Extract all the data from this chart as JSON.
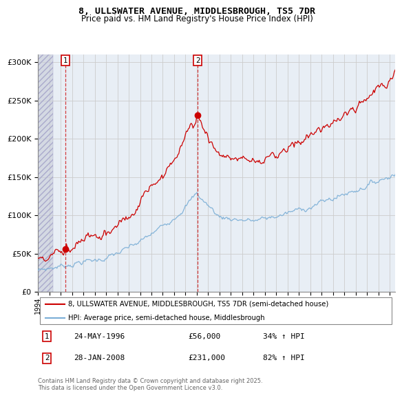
{
  "title1": "8, ULLSWATER AVENUE, MIDDLESBROUGH, TS5 7DR",
  "title2": "Price paid vs. HM Land Registry's House Price Index (HPI)",
  "ylabel_values": [
    "£0",
    "£50K",
    "£100K",
    "£150K",
    "£200K",
    "£250K",
    "£300K"
  ],
  "ylim": [
    0,
    310000
  ],
  "xlim_start": 1994.0,
  "xlim_end": 2025.5,
  "purchase1_year": 1996.39,
  "purchase1_price": 56000,
  "purchase2_year": 2008.08,
  "purchase2_price": 231000,
  "legend_line1": "8, ULLSWATER AVENUE, MIDDLESBROUGH, TS5 7DR (semi-detached house)",
  "legend_line2": "HPI: Average price, semi-detached house, Middlesbrough",
  "annot1_date": "24-MAY-1996",
  "annot1_price": "£56,000",
  "annot1_hpi": "34% ↑ HPI",
  "annot2_date": "28-JAN-2008",
  "annot2_price": "£231,000",
  "annot2_hpi": "82% ↑ HPI",
  "footer": "Contains HM Land Registry data © Crown copyright and database right 2025.\nThis data is licensed under the Open Government Licence v3.0.",
  "line_color_red": "#cc0000",
  "line_color_blue": "#7aaed6",
  "hatch_color": "#d0d0e0",
  "grid_color": "#cccccc",
  "bg_color": "#e8eef5"
}
